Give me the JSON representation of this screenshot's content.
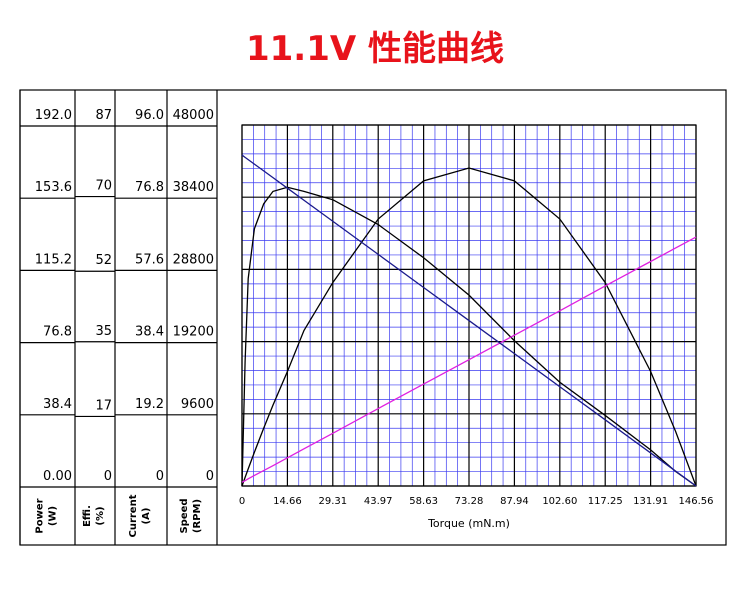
{
  "chart_data": {
    "type": "line",
    "title": "11.1V 性能曲线",
    "xlabel": "Torque (mN.m)",
    "xlim": [
      0,
      146.56
    ],
    "xticks": [
      0,
      14.66,
      29.31,
      43.97,
      58.63,
      73.28,
      87.94,
      {
        "value": 102.6,
        "label": "102.60"
      },
      117.25,
      131.91,
      146.56
    ],
    "axes": [
      {
        "label": [
          "Power",
          "(W)"
        ],
        "lim": [
          0,
          192
        ],
        "ticks": [
          {
            "value": 0,
            "label": "0.00"
          },
          38.4,
          76.8,
          115.2,
          153.6,
          {
            "value": 192,
            "label": "192.0"
          }
        ]
      },
      {
        "label": [
          "Effi.",
          "(%)"
        ],
        "lim": [
          0,
          87
        ],
        "ticks": [
          0,
          17,
          35,
          52,
          70,
          87
        ]
      },
      {
        "label": [
          "Current",
          "(A)"
        ],
        "lim": [
          0,
          96
        ],
        "ticks": [
          0,
          19.2,
          38.4,
          57.6,
          76.8,
          {
            "value": 96,
            "label": "96.0"
          }
        ]
      },
      {
        "label": [
          "Speed",
          "(RPM)"
        ],
        "lim": [
          0,
          48000
        ],
        "ticks": [
          0,
          9600,
          19200,
          28800,
          38400,
          48000
        ]
      }
    ],
    "x": [
      0,
      1,
      2,
      4,
      7,
      10,
      14.66,
      20,
      29.31,
      43.97,
      58.63,
      73.28,
      87.94,
      102.6,
      117.25,
      131.91,
      140,
      146.56
    ],
    "series": [
      {
        "axis": 0,
        "color": "#000000",
        "values": [
          0,
          4.58,
          9.1,
          17.96,
          30.73,
          43.0,
          60.9,
          82.7,
          108.2,
          142.0,
          162.3,
          169.1,
          162.3,
          142.0,
          108.2,
          60.9,
          28.9,
          0
        ]
      },
      {
        "axis": 1,
        "color": "#000000",
        "values": [
          0,
          30,
          50,
          62,
          68,
          71,
          72,
          71,
          69,
          63,
          55,
          46,
          35,
          25,
          17,
          8.7,
          3.5,
          0
        ]
      },
      {
        "axis": 2,
        "color": "#e020e0",
        "values": [
          1,
          1.4,
          1.9,
          2.8,
          4.1,
          5.4,
          7.5,
          9.9,
          14.0,
          20.6,
          27.1,
          33.6,
          40.1,
          46.6,
          53.2,
          59.7,
          63.3,
          66.2
        ]
      },
      {
        "axis": 3,
        "color": "#1a1a8c",
        "values": [
          44000,
          43700,
          43400,
          42799,
          41898,
          40998,
          39599,
          37996,
          35201,
          30799,
          26398,
          22000,
          17599,
          13198,
          8799,
          4398,
          1969,
          0
        ]
      }
    ],
    "grid": true
  }
}
